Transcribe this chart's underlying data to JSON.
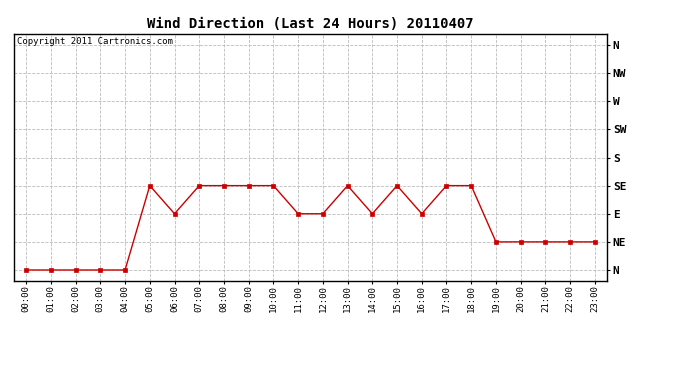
{
  "title": "Wind Direction (Last 24 Hours) 20110407",
  "copyright_text": "Copyright 2011 Cartronics.com",
  "background_color": "#ffffff",
  "plot_bg_color": "#ffffff",
  "line_color": "#cc0000",
  "marker": "s",
  "marker_size": 2.5,
  "marker_edge_color": "#000000",
  "grid_color": "#bbbbbb",
  "grid_style": "--",
  "x_labels": [
    "00:00",
    "01:00",
    "02:00",
    "03:00",
    "04:00",
    "05:00",
    "06:00",
    "07:00",
    "08:00",
    "09:00",
    "10:00",
    "11:00",
    "12:00",
    "13:00",
    "14:00",
    "15:00",
    "16:00",
    "17:00",
    "18:00",
    "19:00",
    "20:00",
    "21:00",
    "22:00",
    "23:00"
  ],
  "y_ticks": [
    0,
    45,
    90,
    135,
    180,
    225,
    270,
    315,
    360
  ],
  "y_labels": [
    "N",
    "NE",
    "E",
    "SE",
    "S",
    "SW",
    "W",
    "NW",
    "N"
  ],
  "ylim": [
    -18,
    378
  ],
  "data": [
    0,
    0,
    0,
    0,
    0,
    135,
    90,
    135,
    135,
    135,
    135,
    90,
    90,
    135,
    90,
    135,
    90,
    135,
    135,
    45,
    45,
    45,
    45,
    45
  ]
}
